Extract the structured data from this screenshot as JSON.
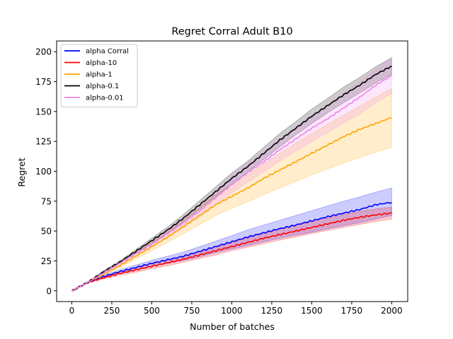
{
  "chart_data": {
    "type": "line",
    "title": "Regret Corral Adult B10",
    "xlabel": "Number of batches",
    "ylabel": "Regret",
    "xlim": [
      -95,
      2100
    ],
    "ylim": [
      -9,
      209
    ],
    "xticks": [
      0,
      250,
      500,
      750,
      1000,
      1250,
      1500,
      1750,
      2000
    ],
    "yticks": [
      0,
      25,
      50,
      75,
      100,
      125,
      150,
      175,
      200
    ],
    "grid": false,
    "legend_position": "upper-left",
    "x": [
      0,
      100,
      200,
      300,
      400,
      500,
      600,
      700,
      800,
      900,
      1000,
      1100,
      1200,
      1300,
      1400,
      1500,
      1600,
      1700,
      1800,
      1900,
      2000
    ],
    "series": [
      {
        "name": "alpha Corral",
        "color": "#0000ff",
        "values": [
          0,
          7,
          12,
          16,
          19.5,
          23,
          26,
          29,
          33,
          37,
          41,
          45,
          48.5,
          52,
          55,
          58.5,
          62,
          65,
          68,
          72,
          74
        ],
        "lower": [
          0,
          6.5,
          11,
          14.5,
          17.5,
          20.5,
          23,
          25.5,
          28.5,
          32,
          35,
          38,
          41,
          44,
          46.5,
          49,
          52,
          54.5,
          57,
          60,
          63
        ],
        "upper": [
          0,
          7.5,
          13,
          17.5,
          21.5,
          25.5,
          29,
          32.5,
          37,
          41.5,
          46,
          51,
          55,
          59,
          63,
          67,
          71,
          75,
          78.5,
          82.5,
          86
        ]
      },
      {
        "name": "alpha-10",
        "color": "#ff0000",
        "values": [
          0,
          7,
          11,
          14.5,
          17.5,
          20.5,
          23.5,
          26.5,
          30,
          33.5,
          37,
          40.5,
          44,
          47,
          50,
          53,
          56,
          59,
          61.5,
          63.5,
          65
        ],
        "lower": [
          0,
          6.5,
          10,
          13,
          15.5,
          18.5,
          21,
          24,
          27,
          30,
          33.5,
          36.5,
          39.5,
          42.5,
          45,
          48,
          50.5,
          53,
          55.5,
          58,
          60
        ],
        "upper": [
          0,
          7.5,
          12,
          16,
          19.5,
          22.5,
          26,
          29,
          33,
          37,
          40.5,
          44.5,
          48,
          51.5,
          55,
          58,
          61,
          64,
          66.5,
          68.5,
          70
        ]
      },
      {
        "name": "alpha-1",
        "color": "#ffa500",
        "values": [
          0,
          7,
          14,
          21,
          29,
          37,
          45,
          54,
          63,
          72,
          79,
          86,
          94,
          101,
          108,
          115,
          122,
          129,
          135,
          140,
          145
        ],
        "lower": [
          0,
          6.5,
          13,
          19.5,
          26.5,
          33.5,
          40.5,
          48,
          55.5,
          63,
          69,
          74.5,
          80.5,
          86,
          91.5,
          97,
          102,
          107,
          111.5,
          116,
          120
        ],
        "upper": [
          0,
          7.5,
          15,
          22.5,
          31.5,
          40.5,
          49.5,
          59.5,
          70,
          81,
          89,
          97.5,
          106.5,
          115,
          123.5,
          131.5,
          139.5,
          147,
          154.5,
          162,
          169
        ]
      },
      {
        "name": "alpha-0.1",
        "color": "#000000",
        "values": [
          0,
          7,
          16,
          24,
          33,
          42,
          51,
          61,
          72,
          83,
          94,
          104,
          115,
          126,
          136,
          146,
          155,
          164,
          172,
          181,
          188
        ],
        "lower": [
          0,
          6.5,
          15,
          23,
          31.5,
          40,
          48.5,
          58,
          68.5,
          79,
          89.5,
          99.5,
          110,
          120.5,
          130.5,
          140,
          149,
          157.5,
          165.5,
          174,
          181
        ],
        "upper": [
          0,
          7.5,
          17,
          25,
          34.5,
          44,
          53.5,
          64,
          75.5,
          87,
          98.5,
          108.5,
          120,
          131.5,
          141.5,
          152,
          161,
          170.5,
          178.5,
          187.5,
          195
        ]
      },
      {
        "name": "alpha-0.01",
        "color": "#ee82ee",
        "values": [
          0,
          7,
          15,
          23,
          31,
          39,
          48,
          57,
          67,
          78,
          89,
          99,
          108,
          118,
          127,
          136,
          144,
          153,
          162,
          172,
          180
        ],
        "lower": [
          0,
          6.5,
          14,
          21.5,
          29,
          36.5,
          44.5,
          53,
          62,
          72,
          82,
          91,
          99.5,
          108.5,
          117,
          125,
          132.5,
          140.5,
          148,
          157.5,
          165
        ],
        "upper": [
          0,
          7.5,
          16,
          24.5,
          33,
          41.5,
          51.5,
          61,
          72,
          84,
          96,
          107,
          116.5,
          127.5,
          137,
          147,
          155.5,
          165.5,
          174.5,
          185,
          195
        ]
      }
    ]
  }
}
